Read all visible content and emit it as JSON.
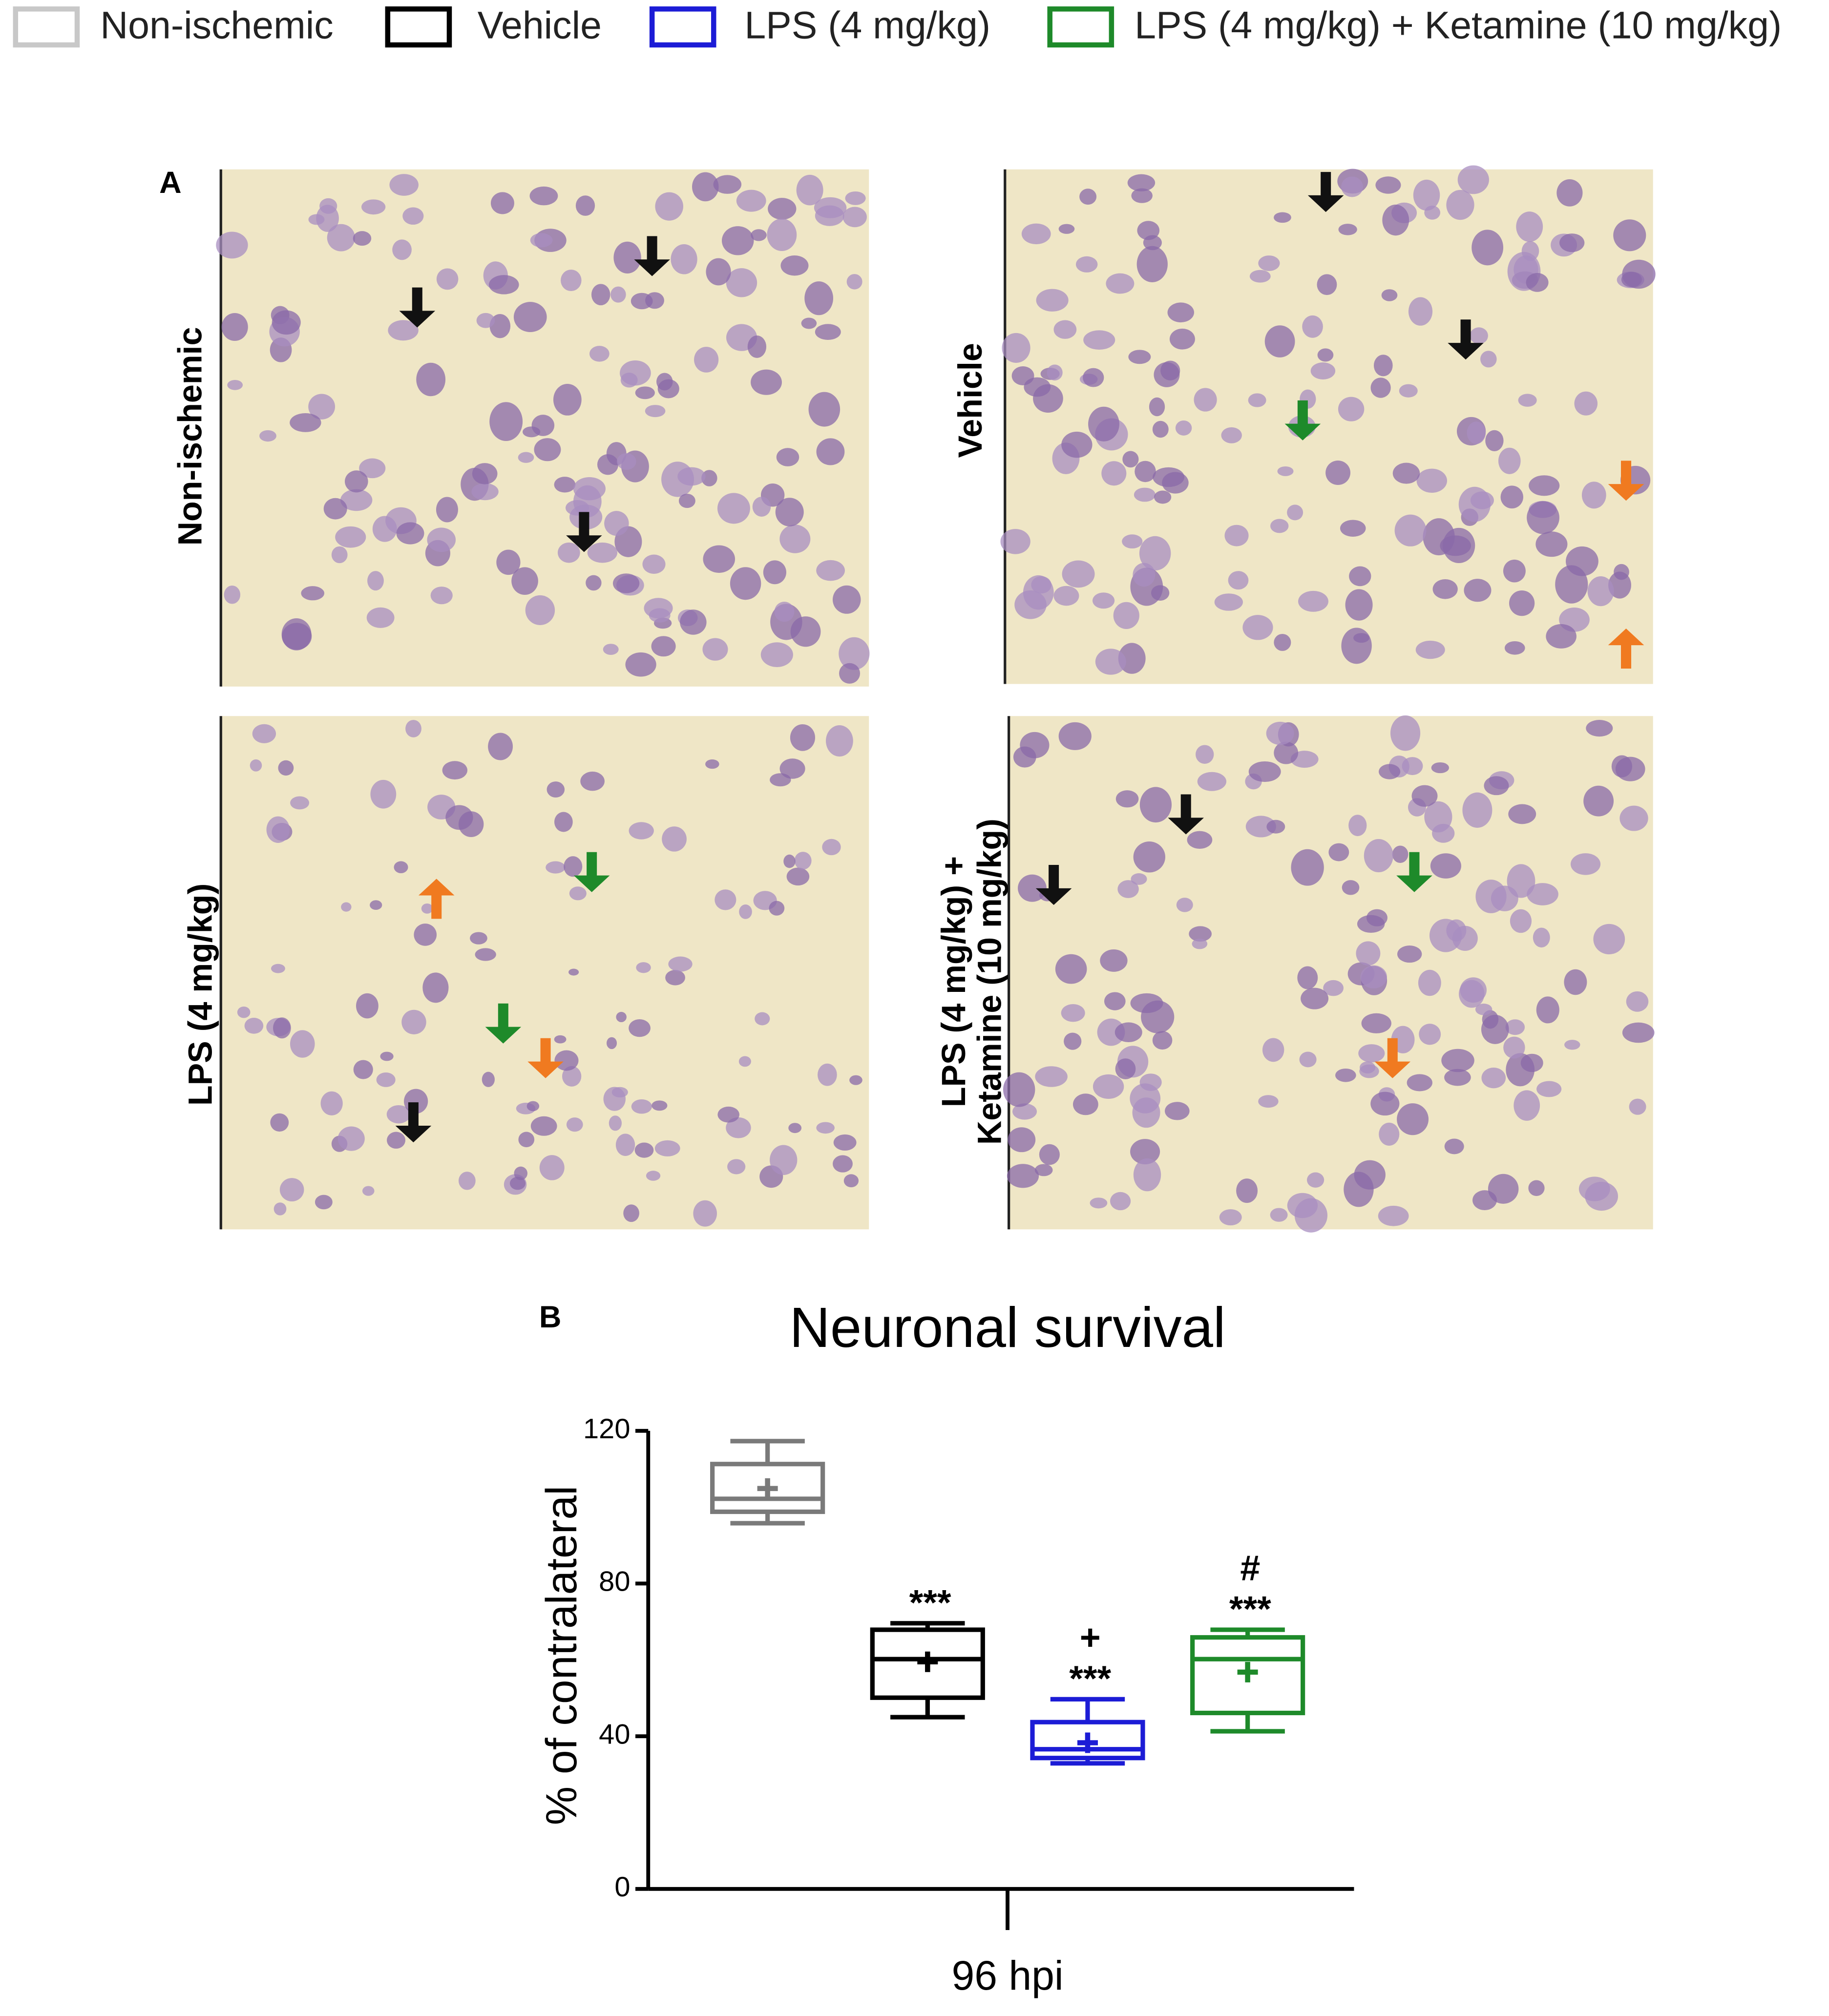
{
  "figure": {
    "panel_a_label": "A",
    "panel_b_label": "B",
    "micrographs": [
      {
        "label_lines": [
          "Non-ischemic"
        ]
      },
      {
        "label_lines": [
          "Vehicle"
        ]
      },
      {
        "label_lines": [
          "LPS (4 mg/kg)"
        ]
      },
      {
        "label_lines": [
          "LPS (4 mg/kg) +",
          "Ketamine (10 mg/kg)"
        ]
      }
    ]
  },
  "chart_data": {
    "type": "box",
    "title": "Neuronal survival",
    "y_label": "% of contralateral",
    "categories": [
      "96 hpi"
    ],
    "ylim": [
      0,
      120
    ],
    "yticks": [
      0,
      40,
      80,
      120
    ],
    "legend": "top",
    "series": [
      {
        "name": "Non-ischemic",
        "color": "#7a7a7a",
        "min": 95.8,
        "q1": 98.8,
        "median": 102.2,
        "q3": 111.3,
        "max": 117.3,
        "mean": 104.9,
        "annotations": []
      },
      {
        "name": "Vehicle",
        "color": "#000000",
        "min": 45.0,
        "q1": 50.1,
        "median": 60.2,
        "q3": 67.9,
        "max": 69.6,
        "mean": 59.5,
        "annotations": [
          "***"
        ]
      },
      {
        "name": "LPS (4 mg/kg)",
        "color": "#1c1cd6",
        "min": 32.9,
        "q1": 34.3,
        "median": 36.6,
        "q3": 43.7,
        "max": 49.7,
        "mean": 38.3,
        "annotations": [
          "+",
          "***"
        ]
      },
      {
        "name": "LPS (4 mg/kg) + Ketamine (10 mg/kg)",
        "color": "#1e8a2a",
        "min": 41.3,
        "q1": 46.1,
        "median": 60.2,
        "q3": 65.9,
        "max": 67.9,
        "mean": 56.8,
        "annotations": [
          "#",
          "***"
        ]
      }
    ]
  }
}
